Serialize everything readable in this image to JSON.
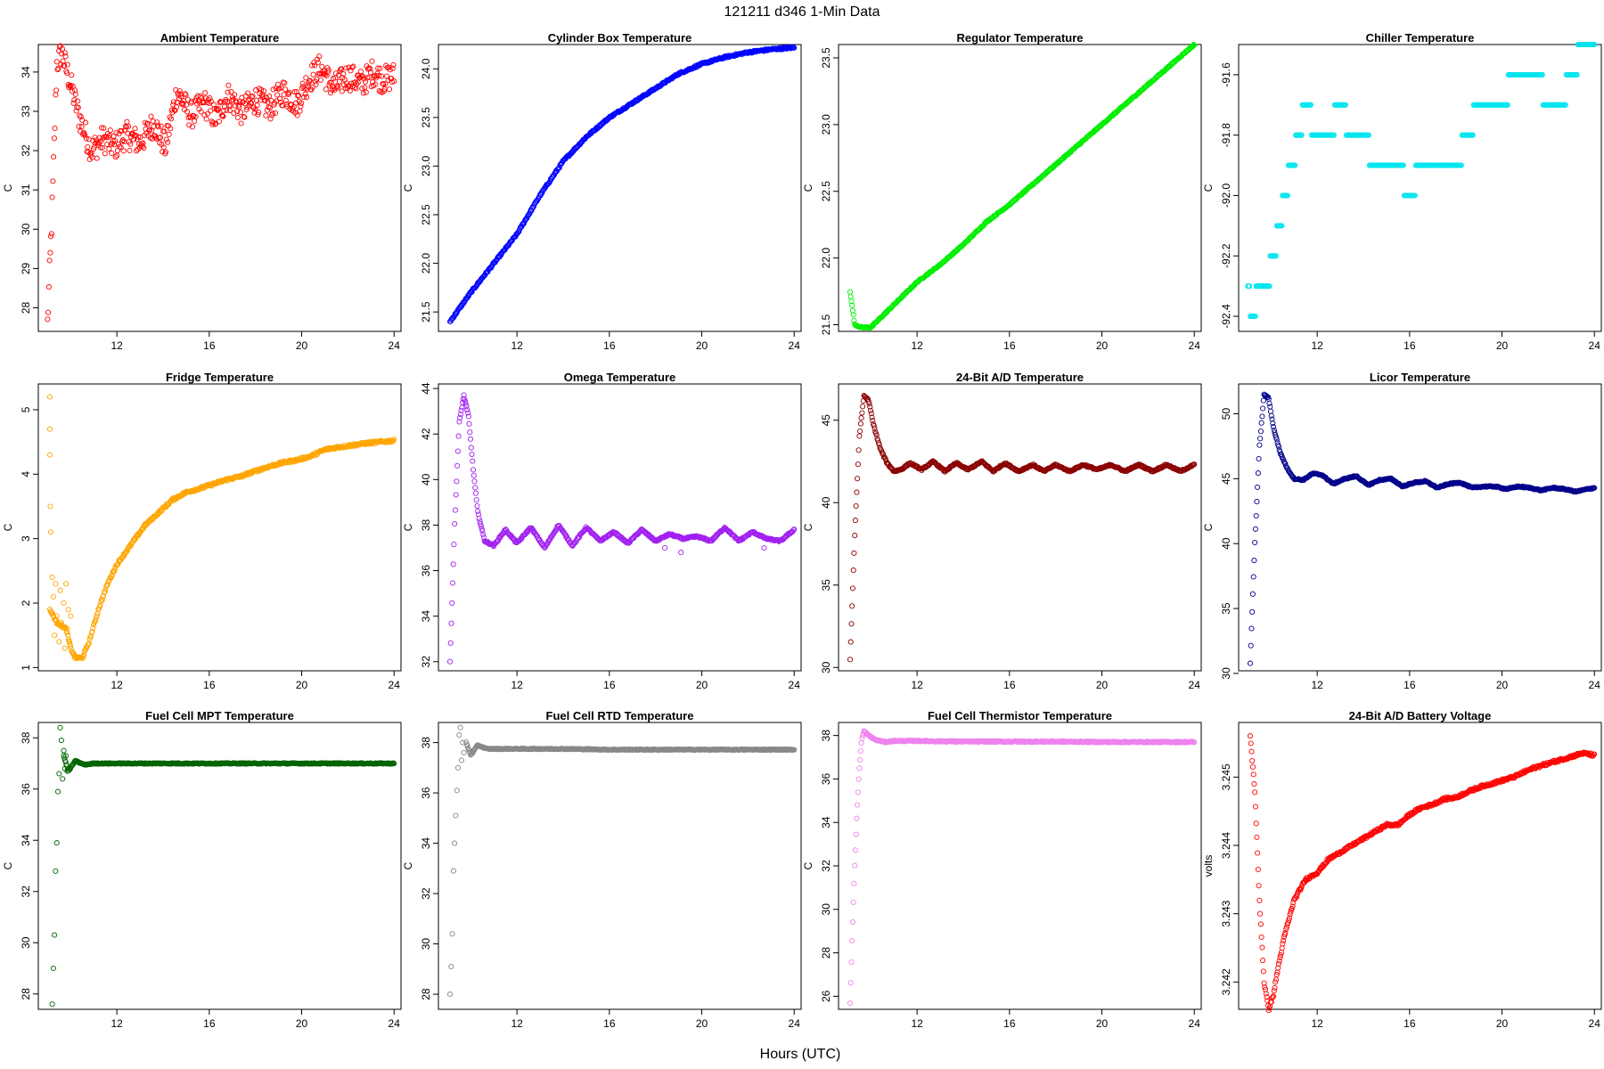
{
  "figure": {
    "title": "121211    d346    1-Min Data",
    "xlabel": "Hours (UTC)"
  },
  "chart_data": [
    {
      "type": "scatter",
      "title": "Ambient Temperature",
      "ylabel": "C",
      "color": "#ff0000",
      "xlim": [
        8.6,
        24.3
      ],
      "ylim": [
        27.4,
        34.7
      ],
      "xticks": [
        12,
        16,
        20,
        24
      ],
      "yticks": [
        28,
        29,
        30,
        31,
        32,
        33,
        34
      ],
      "ytick_labels": [
        "28",
        "29",
        "30",
        "31",
        "32",
        "33",
        "34"
      ],
      "x": [
        9.0,
        9.2,
        9.4,
        9.6,
        9.9,
        10.4,
        10.9,
        11.4,
        11.9,
        12.4,
        13.0,
        13.6,
        14.1,
        14.6,
        15.2,
        15.8,
        16.3,
        16.8,
        17.4,
        18.0,
        18.6,
        19.2,
        19.8,
        20.3,
        20.8,
        21.4,
        22.0,
        22.6,
        23.1,
        23.5,
        24.0
      ],
      "y": [
        27.6,
        30.5,
        34.2,
        34.5,
        33.9,
        32.8,
        32.0,
        32.3,
        32.1,
        32.4,
        32.2,
        32.7,
        32.1,
        33.5,
        32.9,
        33.2,
        32.8,
        33.4,
        33.0,
        33.3,
        33.1,
        33.5,
        33.2,
        33.8,
        34.1,
        33.6,
        33.9,
        33.7,
        34.0,
        33.8,
        33.9
      ],
      "noise": 0.35
    },
    {
      "type": "scatter",
      "title": "Cylinder Box Temperature",
      "ylabel": "C",
      "color": "#0000ff",
      "xlim": [
        8.6,
        24.3
      ],
      "ylim": [
        21.3,
        24.25
      ],
      "xticks": [
        12,
        16,
        20,
        24
      ],
      "yticks": [
        21.5,
        22.0,
        22.5,
        23.0,
        23.5,
        24.0
      ],
      "ytick_labels": [
        "21.5",
        "22.0",
        "22.5",
        "23.0",
        "23.5",
        "24.0"
      ],
      "x": [
        9.1,
        10.0,
        11.0,
        12.0,
        13.0,
        14.0,
        15.0,
        16.0,
        17.0,
        18.0,
        19.0,
        20.0,
        21.0,
        22.0,
        23.0,
        24.0
      ],
      "y": [
        21.4,
        21.7,
        22.0,
        22.3,
        22.7,
        23.05,
        23.3,
        23.5,
        23.65,
        23.8,
        23.95,
        24.05,
        24.12,
        24.17,
        24.2,
        24.22
      ],
      "noise": 0.01
    },
    {
      "type": "scatter",
      "title": "Regulator Temperature",
      "ylabel": "C",
      "color": "#00ee00",
      "xlim": [
        8.6,
        24.3
      ],
      "ylim": [
        21.45,
        23.6
      ],
      "xticks": [
        12,
        16,
        20,
        24
      ],
      "yticks": [
        21.5,
        22.0,
        22.5,
        23.0,
        23.5
      ],
      "ytick_labels": [
        "21.5",
        "22.0",
        "22.5",
        "23.0",
        "23.5"
      ],
      "x": [
        9.1,
        9.3,
        9.6,
        10.0,
        11.0,
        12.0,
        13.0,
        14.0,
        15.0,
        16.0,
        17.0,
        18.0,
        19.0,
        20.0,
        21.0,
        22.0,
        23.0,
        24.0
      ],
      "y": [
        21.75,
        21.5,
        21.48,
        21.48,
        21.65,
        21.82,
        21.95,
        22.1,
        22.27,
        22.4,
        22.55,
        22.7,
        22.85,
        23.0,
        23.15,
        23.3,
        23.45,
        23.6
      ],
      "noise": 0.005
    },
    {
      "type": "scatter",
      "title": "Chiller Temperature",
      "ylabel": "C",
      "color": "#00e5ee",
      "xlim": [
        8.6,
        24.3
      ],
      "ylim": [
        -92.45,
        -91.5
      ],
      "xticks": [
        12,
        16,
        20,
        24
      ],
      "yticks": [
        -92.4,
        -92.2,
        -92.0,
        -91.8,
        -91.6
      ],
      "ytick_labels": [
        "-92.4",
        "-92.2",
        "-92.0",
        "-91.8",
        "-91.6"
      ],
      "x": [
        9.0,
        9.2,
        9.5,
        9.8,
        10.1,
        10.4,
        10.6,
        10.9,
        11.2,
        11.5,
        12.0,
        12.5,
        13.0,
        13.5,
        14.0,
        14.5,
        15.0,
        15.5,
        16.0,
        16.5,
        17.0,
        17.5,
        18.0,
        18.5,
        19.0,
        19.5,
        20.0,
        20.5,
        21.0,
        21.5,
        22.0,
        22.5,
        23.0,
        23.5,
        24.0
      ],
      "y": [
        -92.3,
        -92.4,
        -92.3,
        -92.3,
        -92.2,
        -92.1,
        -92.0,
        -91.9,
        -91.8,
        -91.7,
        -91.8,
        -91.8,
        -91.7,
        -91.8,
        -91.8,
        -91.9,
        -91.9,
        -91.9,
        -92.0,
        -91.9,
        -91.9,
        -91.9,
        -91.9,
        -91.8,
        -91.7,
        -91.7,
        -91.7,
        -91.6,
        -91.6,
        -91.6,
        -91.7,
        -91.7,
        -91.6,
        -91.5,
        -91.5
      ],
      "noise": 0.0
    },
    {
      "type": "scatter",
      "title": "Fridge Temperature",
      "ylabel": "C",
      "color": "#ffa500",
      "xlim": [
        8.6,
        24.3
      ],
      "ylim": [
        0.95,
        5.4
      ],
      "xticks": [
        12,
        16,
        20,
        24
      ],
      "yticks": [
        1,
        2,
        3,
        4,
        5
      ],
      "ytick_labels": [
        "1",
        "2",
        "3",
        "4",
        "5"
      ],
      "x": [
        9.1,
        9.4,
        9.8,
        10.0,
        10.2,
        10.5,
        10.8,
        11.2,
        11.6,
        12.0,
        12.6,
        13.2,
        13.8,
        14.4,
        15.0,
        15.6,
        16.2,
        16.8,
        17.4,
        18.0,
        18.6,
        19.2,
        19.8,
        20.4,
        21.0,
        21.6,
        22.2,
        22.8,
        23.4,
        24.0
      ],
      "y": [
        1.9,
        1.7,
        1.6,
        1.3,
        1.15,
        1.15,
        1.4,
        1.9,
        2.3,
        2.6,
        2.9,
        3.2,
        3.4,
        3.6,
        3.72,
        3.78,
        3.85,
        3.92,
        3.97,
        4.05,
        4.12,
        4.18,
        4.22,
        4.28,
        4.38,
        4.42,
        4.45,
        4.48,
        4.5,
        4.52
      ],
      "noise": 0.02,
      "scatter_x": [
        9.1,
        9.1,
        9.1,
        9.12,
        9.14,
        9.2,
        9.25,
        9.3,
        9.35,
        9.4,
        9.5,
        9.55,
        9.6,
        9.7,
        9.75,
        9.8,
        9.85,
        9.9,
        9.95,
        10.0
      ],
      "scatter_y": [
        5.2,
        4.7,
        4.3,
        3.5,
        3.1,
        2.4,
        2.1,
        1.5,
        2.3,
        1.8,
        1.4,
        2.2,
        1.7,
        2.0,
        1.3,
        2.3,
        1.6,
        1.9,
        1.4,
        1.8
      ]
    },
    {
      "type": "scatter",
      "title": "Omega Temperature",
      "ylabel": "C",
      "color": "#a020f0",
      "xlim": [
        8.6,
        24.3
      ],
      "ylim": [
        31.6,
        44.2
      ],
      "xticks": [
        12,
        16,
        20,
        24
      ],
      "yticks": [
        32,
        34,
        36,
        38,
        40,
        42,
        44
      ],
      "ytick_labels": [
        "32",
        "34",
        "36",
        "38",
        "40",
        "42",
        "44"
      ],
      "x": [
        9.1,
        9.3,
        9.5,
        9.7,
        9.9,
        10.1,
        10.3,
        10.6,
        11.0,
        11.5,
        12.0,
        12.6,
        13.2,
        13.8,
        14.4,
        15.0,
        15.6,
        16.2,
        16.8,
        17.4,
        18.0,
        18.6,
        19.2,
        19.8,
        20.4,
        21.0,
        21.6,
        22.2,
        22.8,
        23.4,
        24.0
      ],
      "y": [
        32.0,
        38.0,
        42.5,
        43.7,
        42.8,
        40.5,
        38.6,
        37.3,
        37.1,
        37.8,
        37.2,
        37.9,
        37.0,
        38.0,
        37.1,
        37.9,
        37.3,
        37.7,
        37.2,
        37.8,
        37.3,
        37.6,
        37.4,
        37.5,
        37.3,
        37.9,
        37.3,
        37.7,
        37.4,
        37.3,
        37.8
      ],
      "noise": 0.04,
      "scatter_x": [
        18.4,
        19.1,
        22.7
      ],
      "scatter_y": [
        37.0,
        36.8,
        37.0
      ]
    },
    {
      "type": "scatter",
      "title": "24-Bit A/D Temperature",
      "ylabel": "C",
      "color": "#8b0000",
      "xlim": [
        8.6,
        24.3
      ],
      "ylim": [
        29.8,
        47.2
      ],
      "xticks": [
        12,
        16,
        20,
        24
      ],
      "yticks": [
        30,
        35,
        40,
        45
      ],
      "ytick_labels": [
        "30",
        "35",
        "40",
        "45"
      ],
      "x": [
        9.1,
        9.3,
        9.5,
        9.7,
        9.9,
        10.1,
        10.4,
        10.7,
        11.0,
        11.3,
        11.7,
        12.2,
        12.7,
        13.2,
        13.7,
        14.2,
        14.8,
        15.3,
        15.8,
        16.4,
        17.0,
        17.5,
        18.0,
        18.6,
        19.2,
        19.8,
        20.4,
        21.0,
        21.6,
        22.2,
        22.8,
        23.4,
        24.0
      ],
      "y": [
        30.5,
        38.0,
        44.0,
        46.5,
        46.2,
        44.8,
        43.3,
        42.4,
        41.9,
        42.0,
        42.4,
        42.0,
        42.5,
        41.9,
        42.4,
        42.0,
        42.5,
        41.9,
        42.4,
        41.9,
        42.3,
        41.9,
        42.3,
        41.9,
        42.3,
        42.0,
        42.3,
        41.9,
        42.3,
        41.9,
        42.3,
        41.9,
        42.3
      ],
      "noise": 0.05
    },
    {
      "type": "scatter",
      "title": "Licor Temperature",
      "ylabel": "C",
      "color": "#00008b",
      "xlim": [
        8.6,
        24.3
      ],
      "ylim": [
        30.2,
        52.3
      ],
      "xticks": [
        12,
        16,
        20,
        24
      ],
      "yticks": [
        30,
        35,
        40,
        45,
        50
      ],
      "ytick_labels": [
        "30",
        "35",
        "40",
        "45",
        "50"
      ],
      "x": [
        9.1,
        9.3,
        9.5,
        9.7,
        9.9,
        10.1,
        10.4,
        10.7,
        11.0,
        11.4,
        11.8,
        12.2,
        12.7,
        13.2,
        13.7,
        14.2,
        14.7,
        15.2,
        15.7,
        16.2,
        16.7,
        17.2,
        17.7,
        18.2,
        18.7,
        19.2,
        19.7,
        20.2,
        20.7,
        21.2,
        21.7,
        22.2,
        22.7,
        23.2,
        23.7,
        24.0
      ],
      "y": [
        30.8,
        40.0,
        47.5,
        51.5,
        51.2,
        49.0,
        47.0,
        45.8,
        45.0,
        44.9,
        45.4,
        45.3,
        44.6,
        45.0,
        45.2,
        44.5,
        44.9,
        45.0,
        44.4,
        44.7,
        44.8,
        44.3,
        44.6,
        44.7,
        44.3,
        44.4,
        44.4,
        44.2,
        44.4,
        44.3,
        44.1,
        44.3,
        44.2,
        44.0,
        44.2,
        44.3
      ],
      "noise": 0.05
    },
    {
      "type": "scatter",
      "title": "Fuel Cell MPT Temperature",
      "ylabel": "C",
      "color": "#006400",
      "xlim": [
        8.6,
        24.3
      ],
      "ylim": [
        27.4,
        38.6
      ],
      "xticks": [
        12,
        16,
        20,
        24
      ],
      "yticks": [
        28,
        30,
        32,
        34,
        36,
        38
      ],
      "ytick_labels": [
        "28",
        "30",
        "32",
        "34",
        "36",
        "38"
      ],
      "x": [
        9.7,
        9.9,
        10.2,
        10.6,
        11.0,
        12.0,
        14.0,
        16.0,
        18.0,
        20.0,
        22.0,
        24.0
      ],
      "y": [
        37.3,
        36.7,
        37.1,
        36.95,
        37.0,
        37.0,
        37.0,
        37.0,
        37.0,
        37.0,
        37.0,
        37.0
      ],
      "noise": 0.02,
      "scatter_x": [
        9.2,
        9.25,
        9.3,
        9.35,
        9.4,
        9.45,
        9.5,
        9.55,
        9.6,
        9.65,
        9.7,
        9.75,
        9.8,
        9.85
      ],
      "scatter_y": [
        27.6,
        29.0,
        30.3,
        32.8,
        33.9,
        35.9,
        36.6,
        38.4,
        37.9,
        36.4,
        37.5,
        36.8,
        37.3,
        36.7
      ]
    },
    {
      "type": "scatter",
      "title": "Fuel Cell RTD Temperature",
      "ylabel": "C",
      "color": "#888888",
      "xlim": [
        8.6,
        24.3
      ],
      "ylim": [
        27.4,
        38.8
      ],
      "xticks": [
        12,
        16,
        20,
        24
      ],
      "yticks": [
        28,
        30,
        32,
        34,
        36,
        38
      ],
      "ytick_labels": [
        "28",
        "30",
        "32",
        "34",
        "36",
        "38"
      ],
      "x": [
        9.8,
        10.0,
        10.3,
        10.7,
        11.0,
        12.0,
        14.0,
        16.0,
        18.0,
        20.0,
        22.0,
        24.0
      ],
      "y": [
        38.0,
        37.5,
        37.9,
        37.75,
        37.75,
        37.75,
        37.75,
        37.72,
        37.72,
        37.72,
        37.72,
        37.72
      ],
      "noise": 0.02,
      "scatter_x": [
        9.1,
        9.15,
        9.2,
        9.25,
        9.3,
        9.35,
        9.4,
        9.45,
        9.5,
        9.55,
        9.6,
        9.65,
        9.7
      ],
      "scatter_y": [
        28.0,
        29.1,
        30.4,
        32.9,
        34.0,
        35.1,
        36.1,
        37.0,
        38.3,
        38.6,
        37.3,
        38.0,
        37.6
      ]
    },
    {
      "type": "scatter",
      "title": "Fuel Cell Thermistor Temperature",
      "ylabel": "C",
      "color": "#ee82ee",
      "xlim": [
        8.6,
        24.3
      ],
      "ylim": [
        25.4,
        38.6
      ],
      "xticks": [
        12,
        16,
        20,
        24
      ],
      "yticks": [
        26,
        28,
        30,
        32,
        34,
        36,
        38
      ],
      "ytick_labels": [
        "26",
        "28",
        "30",
        "32",
        "34",
        "36",
        "38"
      ],
      "x": [
        9.1,
        9.2,
        9.3,
        9.4,
        9.5,
        9.6,
        9.7,
        9.9,
        10.2,
        10.6,
        11.0,
        12.0,
        14.0,
        16.0,
        18.0,
        20.0,
        22.0,
        24.0
      ],
      "y": [
        25.7,
        29.0,
        32.0,
        34.5,
        36.5,
        37.8,
        38.2,
        38.0,
        37.8,
        37.7,
        37.75,
        37.75,
        37.72,
        37.72,
        37.72,
        37.7,
        37.7,
        37.7
      ],
      "noise": 0.03
    },
    {
      "type": "scatter",
      "title": "24-Bit A/D Battery Voltage",
      "ylabel": "volts",
      "color": "#ff0000",
      "xlim": [
        8.6,
        24.3
      ],
      "ylim": [
        3.2416,
        3.2458
      ],
      "xticks": [
        12,
        16,
        20,
        24
      ],
      "yticks": [
        3.242,
        3.243,
        3.244,
        3.245
      ],
      "ytick_labels": [
        "3.242",
        "3.243",
        "3.244",
        "3.245"
      ],
      "x": [
        9.1,
        9.3,
        9.5,
        9.7,
        9.9,
        10.1,
        10.3,
        10.6,
        11.0,
        11.5,
        12.0,
        12.5,
        13.0,
        13.5,
        14.0,
        14.5,
        15.0,
        15.5,
        16.0,
        16.5,
        17.0,
        17.5,
        18.0,
        18.5,
        19.0,
        19.5,
        20.0,
        20.5,
        21.0,
        21.5,
        22.0,
        22.5,
        23.0,
        23.5,
        24.0
      ],
      "y": [
        3.2456,
        3.2448,
        3.2432,
        3.242,
        3.2416,
        3.2418,
        3.2422,
        3.2427,
        3.2432,
        3.2435,
        3.2436,
        3.2438,
        3.2439,
        3.244,
        3.2441,
        3.2442,
        3.2443,
        3.2443,
        3.24445,
        3.24455,
        3.2446,
        3.24468,
        3.2447,
        3.24478,
        3.24485,
        3.2449,
        3.24495,
        3.245,
        3.24508,
        3.24515,
        3.2452,
        3.24525,
        3.2453,
        3.24535,
        3.24532
      ],
      "noise": 2e-05
    }
  ]
}
